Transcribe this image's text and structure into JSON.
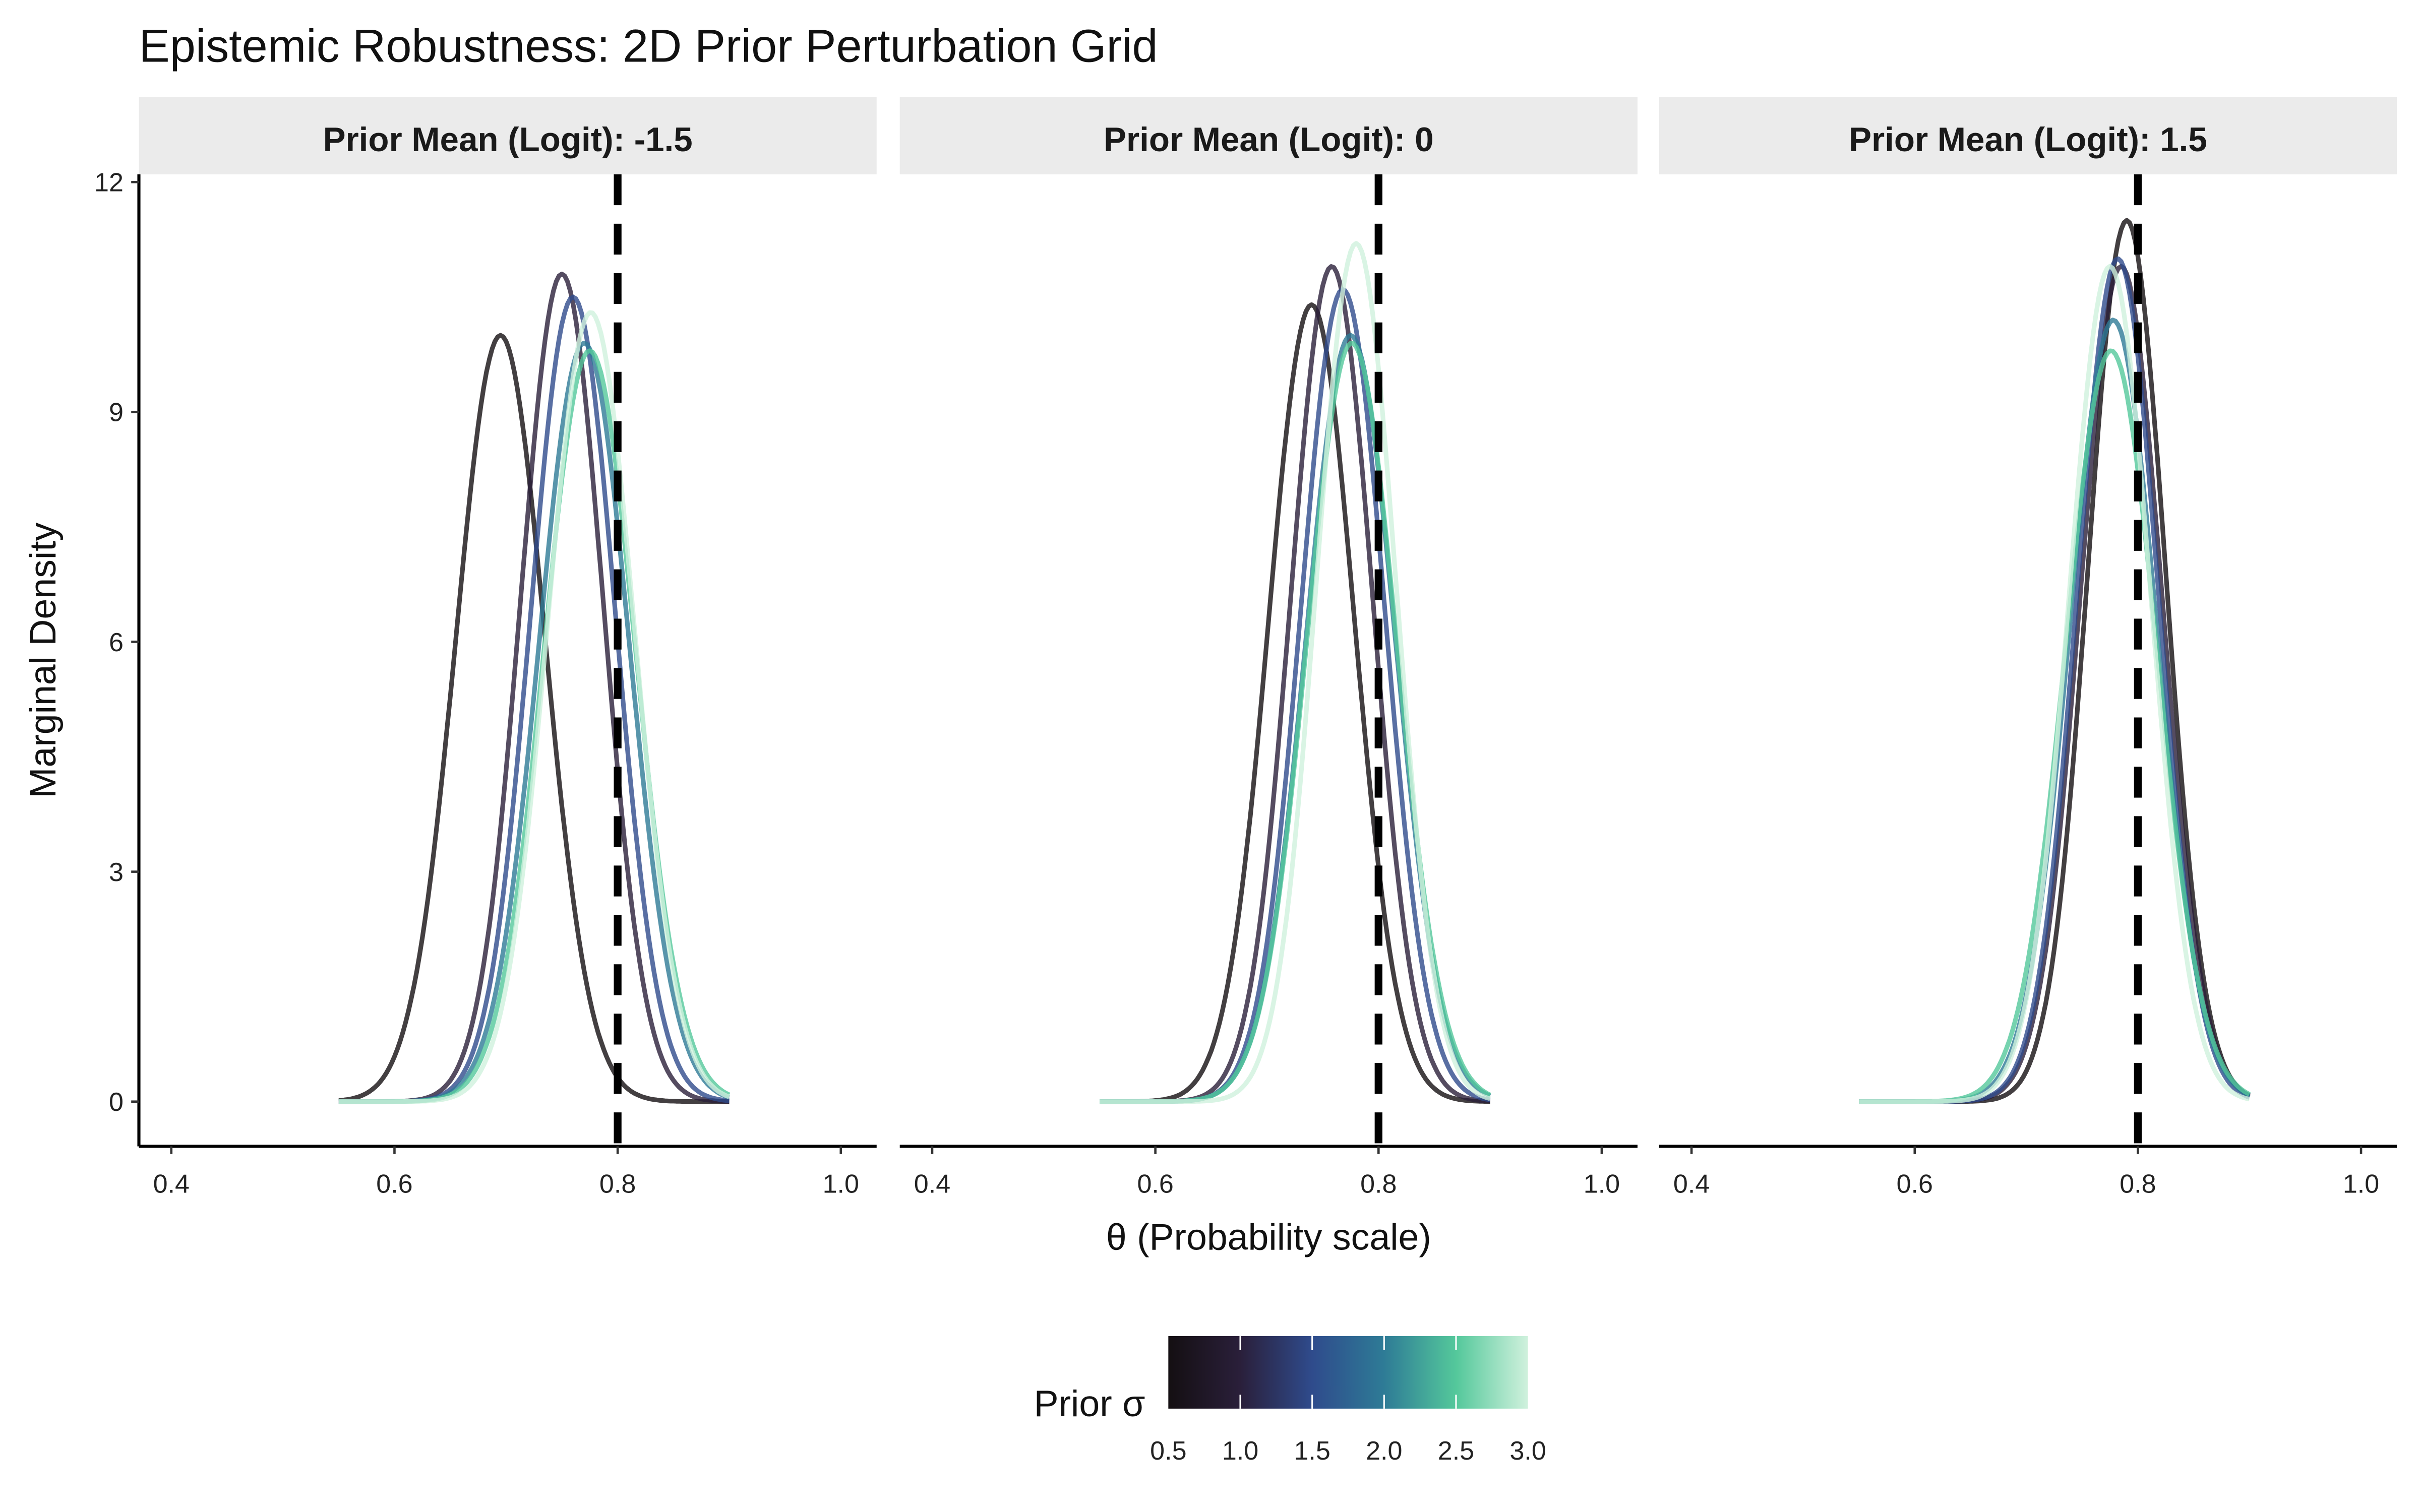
{
  "chart_data": {
    "type": "line",
    "title": "Epistemic Robustness: 2D Prior Perturbation Grid",
    "xlabel": "θ  (Probability scale)",
    "ylabel": "Marginal Density",
    "xlim": [
      0.4,
      1.0
    ],
    "ylim": [
      0,
      12
    ],
    "x_ticks": [
      "0.4",
      "0.6",
      "0.8",
      "1.0"
    ],
    "y_ticks": [
      "0",
      "3",
      "6",
      "9",
      "12"
    ],
    "x_ticks_values": [
      0.4,
      0.6,
      0.8,
      1.0
    ],
    "y_ticks_values": [
      0,
      3,
      6,
      9,
      12
    ],
    "x_data_range": [
      0.55,
      0.9
    ],
    "reference_line": 0.8,
    "legend": {
      "title": "Prior σ",
      "position": "bottom",
      "labels": [
        "0.5",
        "1.0",
        "1.5",
        "2.0",
        "2.5",
        "3.0"
      ],
      "values": [
        0.5,
        1.0,
        1.5,
        2.0,
        2.5,
        3.0
      ],
      "colors": [
        "#140F12",
        "#2A1F3A",
        "#2F4B8C",
        "#2E7B96",
        "#54C89B",
        "#D0F1DD"
      ]
    },
    "panels": [
      {
        "label": "Prior Mean (Logit): -1.5",
        "series": [
          {
            "sigma": 0.5,
            "mode": 0.695,
            "peak": 10.0
          },
          {
            "sigma": 1.0,
            "mode": 0.75,
            "peak": 10.8
          },
          {
            "sigma": 1.5,
            "mode": 0.76,
            "peak": 10.5
          },
          {
            "sigma": 2.0,
            "mode": 0.77,
            "peak": 9.9
          },
          {
            "sigma": 2.5,
            "mode": 0.775,
            "peak": 9.8
          },
          {
            "sigma": 3.0,
            "mode": 0.776,
            "peak": 10.3
          }
        ]
      },
      {
        "label": "Prior Mean (Logit): 0",
        "series": [
          {
            "sigma": 0.5,
            "mode": 0.74,
            "peak": 10.4
          },
          {
            "sigma": 1.0,
            "mode": 0.758,
            "peak": 10.9
          },
          {
            "sigma": 1.5,
            "mode": 0.768,
            "peak": 10.6
          },
          {
            "sigma": 2.0,
            "mode": 0.775,
            "peak": 10.0
          },
          {
            "sigma": 2.5,
            "mode": 0.776,
            "peak": 9.9
          },
          {
            "sigma": 3.0,
            "mode": 0.78,
            "peak": 11.2
          }
        ]
      },
      {
        "label": "Prior Mean (Logit): 1.5",
        "series": [
          {
            "sigma": 0.5,
            "mode": 0.79,
            "peak": 11.5
          },
          {
            "sigma": 1.0,
            "mode": 0.785,
            "peak": 10.9
          },
          {
            "sigma": 1.5,
            "mode": 0.782,
            "peak": 11.0
          },
          {
            "sigma": 2.0,
            "mode": 0.778,
            "peak": 10.2
          },
          {
            "sigma": 2.5,
            "mode": 0.776,
            "peak": 9.8
          },
          {
            "sigma": 3.0,
            "mode": 0.775,
            "peak": 10.9
          }
        ]
      }
    ]
  }
}
